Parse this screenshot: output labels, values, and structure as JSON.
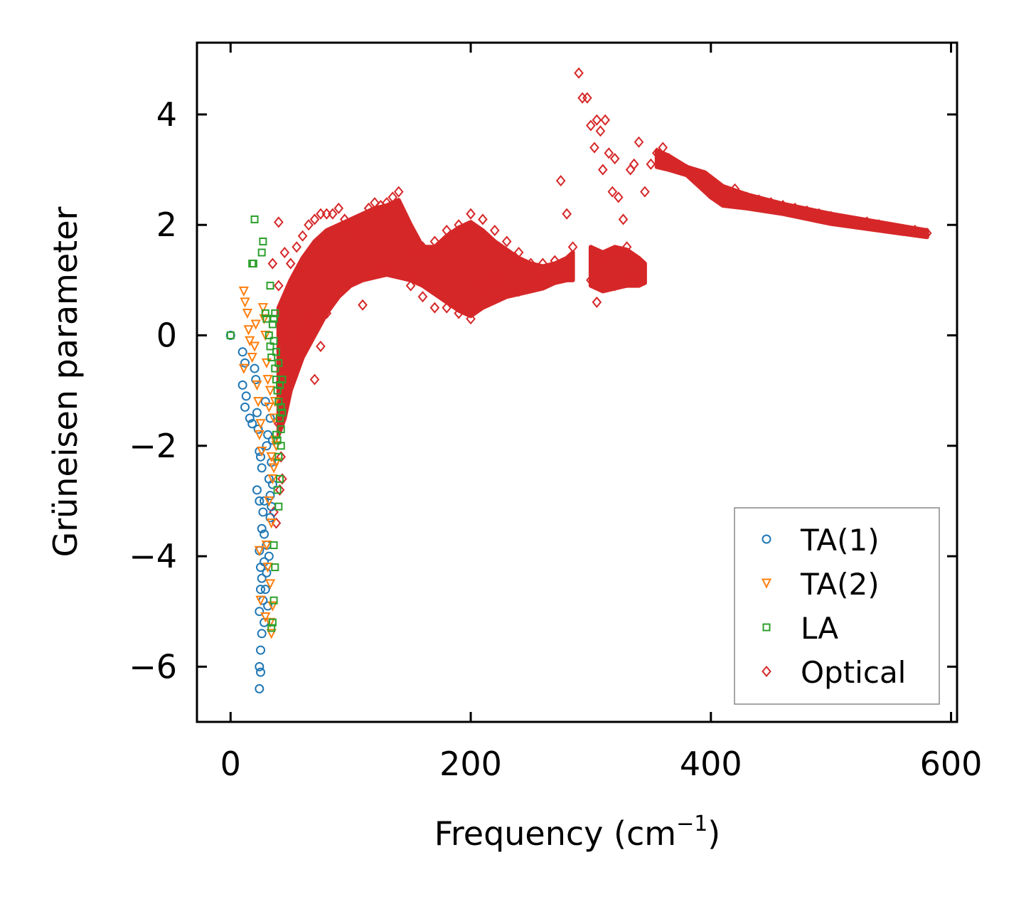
{
  "chart_data": {
    "type": "scatter",
    "title": "",
    "xlabel": "Frequency (cm",
    "xlabel_superscript": "−1",
    "xlabel_suffix": ")",
    "ylabel": "Grüneisen parameter",
    "xlim": [
      -28,
      605
    ],
    "ylim": [
      -7.0,
      5.3
    ],
    "xticks": [
      0,
      200,
      400,
      600
    ],
    "xtick_labels": [
      "0",
      "200",
      "400",
      "600"
    ],
    "yticks": [
      -6,
      -4,
      -2,
      0,
      2,
      4
    ],
    "ytick_labels": [
      "−6",
      "−4",
      "−2",
      "0",
      "2",
      "4"
    ],
    "legend_position": "lower-right",
    "series": [
      {
        "name": "TA(1)",
        "color": "#1f77b4",
        "marker": "circle",
        "points": [
          [
            0,
            0
          ],
          [
            10,
            -0.3
          ],
          [
            12,
            -0.5
          ],
          [
            10,
            -0.9
          ],
          [
            13,
            -1.1
          ],
          [
            12,
            -1.3
          ],
          [
            16,
            -1.5
          ],
          [
            18,
            -1.6
          ],
          [
            20,
            -0.6
          ],
          [
            21,
            -0.8
          ],
          [
            22,
            -1.4
          ],
          [
            23,
            -1.7
          ],
          [
            24,
            -2.1
          ],
          [
            25,
            -2.2
          ],
          [
            22,
            -2.8
          ],
          [
            26,
            -2.4
          ],
          [
            24,
            -3.0
          ],
          [
            27,
            -3.2
          ],
          [
            26,
            -3.5
          ],
          [
            28,
            -3.6
          ],
          [
            24,
            -3.9
          ],
          [
            25,
            -4.2
          ],
          [
            26,
            -4.4
          ],
          [
            28,
            -4.1
          ],
          [
            30,
            -4.3
          ],
          [
            25,
            -4.6
          ],
          [
            27,
            -4.8
          ],
          [
            24,
            -5.0
          ],
          [
            28,
            -5.2
          ],
          [
            26,
            -5.4
          ],
          [
            25,
            -5.7
          ],
          [
            24,
            -6.0
          ],
          [
            25,
            -6.1
          ],
          [
            24,
            -6.4
          ],
          [
            32,
            -2.6
          ],
          [
            33,
            -2.9
          ],
          [
            34,
            -3.1
          ],
          [
            33,
            -3.3
          ],
          [
            30,
            -2.0
          ],
          [
            31,
            -1.8
          ],
          [
            29,
            -1.2
          ],
          [
            35,
            -1.9
          ],
          [
            34,
            -2.3
          ],
          [
            30,
            -3.8
          ],
          [
            32,
            -4.0
          ],
          [
            29,
            -4.6
          ],
          [
            31,
            -4.9
          ],
          [
            28,
            -3.0
          ],
          [
            33,
            -1.5
          ],
          [
            35,
            -2.7
          ]
        ]
      },
      {
        "name": "TA(2)",
        "color": "#ff7f0e",
        "marker": "triangle-down",
        "points": [
          [
            11,
            0.8
          ],
          [
            12,
            0.6
          ],
          [
            14,
            0.4
          ],
          [
            15,
            0.1
          ],
          [
            16,
            -0.1
          ],
          [
            18,
            -0.4
          ],
          [
            11,
            -0.6
          ],
          [
            20,
            -0.2
          ],
          [
            21,
            0.2
          ],
          [
            22,
            -0.9
          ],
          [
            23,
            -1.2
          ],
          [
            24,
            -1.8
          ],
          [
            25,
            -1.6
          ],
          [
            26,
            -2.1
          ],
          [
            27,
            0.5
          ],
          [
            28,
            0.3
          ],
          [
            29,
            0.0
          ],
          [
            30,
            -0.5
          ],
          [
            31,
            -0.8
          ],
          [
            32,
            -1.3
          ],
          [
            33,
            -1.0
          ],
          [
            34,
            -2.2
          ],
          [
            35,
            -2.6
          ],
          [
            36,
            -2.4
          ],
          [
            37,
            -1.9
          ],
          [
            38,
            -2.0
          ],
          [
            32,
            -3.0
          ],
          [
            34,
            -3.4
          ],
          [
            30,
            -3.8
          ],
          [
            31,
            -4.2
          ],
          [
            33,
            -4.5
          ],
          [
            35,
            -4.9
          ],
          [
            33,
            -5.2
          ],
          [
            34,
            -5.4
          ],
          [
            24,
            -3.9
          ],
          [
            25,
            -4.8
          ],
          [
            29,
            -5.1
          ],
          [
            36,
            -1.5
          ],
          [
            37,
            -1.2
          ],
          [
            38,
            -2.3
          ]
        ]
      },
      {
        "name": "LA",
        "color": "#2ca02c",
        "marker": "square",
        "points": [
          [
            0,
            0
          ],
          [
            20,
            2.1
          ],
          [
            18,
            1.3
          ],
          [
            19,
            1.3
          ],
          [
            27,
            1.7
          ],
          [
            26,
            1.5
          ],
          [
            33,
            0.9
          ],
          [
            29,
            0.4
          ],
          [
            30,
            0.3
          ],
          [
            32,
            0.0
          ],
          [
            33,
            -0.2
          ],
          [
            34,
            -0.4
          ],
          [
            35,
            0.2
          ],
          [
            36,
            -0.1
          ],
          [
            37,
            -0.6
          ],
          [
            38,
            -0.8
          ],
          [
            39,
            -1.0
          ],
          [
            40,
            -1.2
          ],
          [
            41,
            -1.5
          ],
          [
            42,
            -1.7
          ],
          [
            36,
            0.3
          ],
          [
            37,
            0.4
          ],
          [
            38,
            -0.3
          ],
          [
            40,
            -0.5
          ],
          [
            41,
            -0.9
          ],
          [
            42,
            -1.3
          ],
          [
            39,
            -1.9
          ],
          [
            40,
            -2.2
          ],
          [
            41,
            -2.6
          ],
          [
            39,
            -2.8
          ],
          [
            36,
            -3.8
          ],
          [
            37,
            -4.2
          ],
          [
            36,
            -4.8
          ],
          [
            35,
            -5.2
          ],
          [
            34,
            -5.3
          ],
          [
            43,
            -0.8
          ],
          [
            43,
            -1.4
          ],
          [
            42,
            -2.0
          ],
          [
            38,
            -1.8
          ],
          [
            40,
            -3.1
          ]
        ]
      },
      {
        "name": "Optical",
        "color": "#d62728",
        "marker": "diamond",
        "points": [
          [
            40,
            2.05
          ],
          [
            35,
            1.3
          ],
          [
            40,
            0.9
          ],
          [
            45,
            1.5
          ],
          [
            50,
            1.3
          ],
          [
            55,
            1.6
          ],
          [
            60,
            1.8
          ],
          [
            65,
            2.0
          ],
          [
            70,
            2.1
          ],
          [
            75,
            2.2
          ],
          [
            80,
            2.2
          ],
          [
            85,
            2.2
          ],
          [
            90,
            2.3
          ],
          [
            95,
            2.1
          ],
          [
            100,
            2.0
          ],
          [
            105,
            1.9
          ],
          [
            110,
            0.55
          ],
          [
            115,
            2.3
          ],
          [
            120,
            2.4
          ],
          [
            125,
            2.35
          ],
          [
            130,
            2.4
          ],
          [
            135,
            2.5
          ],
          [
            140,
            2.6
          ],
          [
            150,
            1.5
          ],
          [
            160,
            1.6
          ],
          [
            170,
            1.7
          ],
          [
            180,
            1.9
          ],
          [
            190,
            2.0
          ],
          [
            200,
            2.2
          ],
          [
            210,
            2.1
          ],
          [
            220,
            1.9
          ],
          [
            230,
            1.7
          ],
          [
            240,
            1.5
          ],
          [
            250,
            1.3
          ],
          [
            260,
            1.3
          ],
          [
            270,
            1.35
          ],
          [
            275,
            2.8
          ],
          [
            280,
            2.2
          ],
          [
            285,
            1.6
          ],
          [
            290,
            4.75
          ],
          [
            293,
            4.3
          ],
          [
            297,
            4.3
          ],
          [
            300,
            3.8
          ],
          [
            303,
            3.4
          ],
          [
            305,
            3.9
          ],
          [
            308,
            3.7
          ],
          [
            310,
            3.0
          ],
          [
            312,
            3.9
          ],
          [
            315,
            3.3
          ],
          [
            318,
            2.6
          ],
          [
            320,
            3.2
          ],
          [
            323,
            2.5
          ],
          [
            327,
            2.1
          ],
          [
            330,
            1.6
          ],
          [
            333,
            3.0
          ],
          [
            336,
            3.1
          ],
          [
            340,
            3.5
          ],
          [
            345,
            2.6
          ],
          [
            350,
            3.1
          ],
          [
            355,
            3.3
          ],
          [
            360,
            3.4
          ],
          [
            365,
            3.2
          ],
          [
            370,
            3.1
          ],
          [
            375,
            3.05
          ],
          [
            380,
            3.0
          ],
          [
            390,
            2.9
          ],
          [
            400,
            2.8
          ],
          [
            410,
            2.6
          ],
          [
            420,
            2.65
          ],
          [
            430,
            2.5
          ],
          [
            440,
            2.45
          ],
          [
            450,
            2.4
          ],
          [
            460,
            2.35
          ],
          [
            470,
            2.3
          ],
          [
            480,
            2.25
          ],
          [
            490,
            2.2
          ],
          [
            500,
            2.15
          ],
          [
            510,
            2.1
          ],
          [
            520,
            2.05
          ],
          [
            530,
            2.05
          ],
          [
            540,
            2.0
          ],
          [
            550,
            1.95
          ],
          [
            560,
            1.9
          ],
          [
            570,
            1.9
          ],
          [
            580,
            1.85
          ],
          [
            300,
            1.0
          ],
          [
            305,
            0.6
          ],
          [
            310,
            1.4
          ],
          [
            320,
            0.9
          ],
          [
            330,
            1.1
          ],
          [
            340,
            1.0
          ],
          [
            45,
            -1.2
          ],
          [
            50,
            -0.6
          ],
          [
            55,
            -0.4
          ],
          [
            60,
            0.0
          ],
          [
            65,
            0.3
          ],
          [
            70,
            -0.8
          ],
          [
            75,
            -0.2
          ],
          [
            80,
            0.4
          ],
          [
            40,
            -1.6
          ],
          [
            42,
            -2.2
          ],
          [
            43,
            -2.6
          ],
          [
            38,
            -3.4
          ],
          [
            36,
            -3.2
          ],
          [
            41,
            -2.8
          ],
          [
            130,
            1.2
          ],
          [
            140,
            1.3
          ],
          [
            150,
            0.9
          ],
          [
            160,
            0.7
          ],
          [
            170,
            0.5
          ],
          [
            180,
            0.5
          ],
          [
            190,
            0.4
          ],
          [
            200,
            0.3
          ],
          [
            210,
            0.9
          ],
          [
            220,
            1.0
          ],
          [
            230,
            0.9
          ],
          [
            240,
            0.8
          ],
          [
            250,
            0.9
          ],
          [
            260,
            1.0
          ]
        ]
      }
    ]
  }
}
